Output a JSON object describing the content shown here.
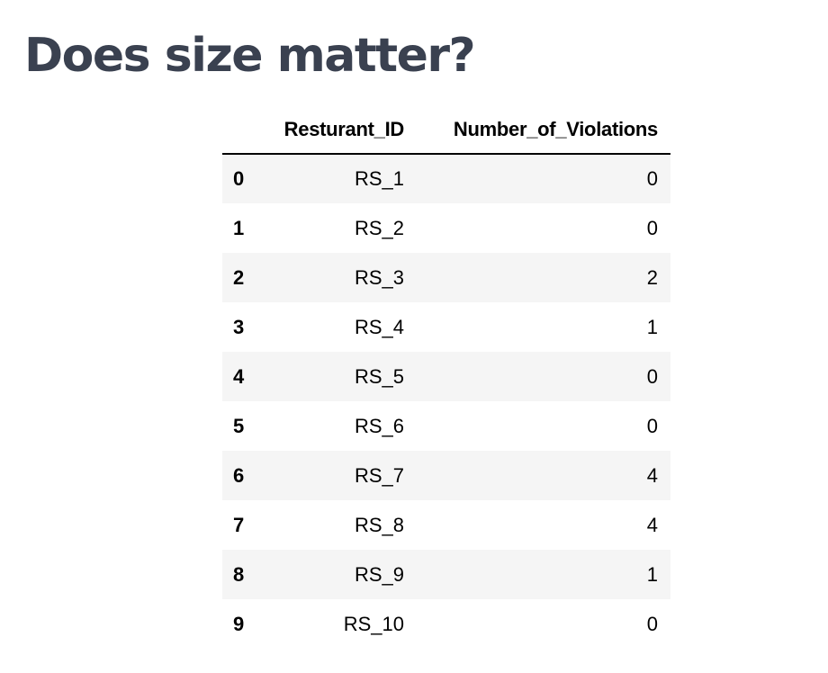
{
  "title": "Does size matter?",
  "table": {
    "index_header": "",
    "columns": [
      "Resturant_ID",
      "Number_of_Violations"
    ],
    "rows": [
      {
        "index": "0",
        "id": "RS_1",
        "violations": "0"
      },
      {
        "index": "1",
        "id": "RS_2",
        "violations": "0"
      },
      {
        "index": "2",
        "id": "RS_3",
        "violations": "2"
      },
      {
        "index": "3",
        "id": "RS_4",
        "violations": "1"
      },
      {
        "index": "4",
        "id": "RS_5",
        "violations": "0"
      },
      {
        "index": "5",
        "id": "RS_6",
        "violations": "0"
      },
      {
        "index": "6",
        "id": "RS_7",
        "violations": "4"
      },
      {
        "index": "7",
        "id": "RS_8",
        "violations": "4"
      },
      {
        "index": "8",
        "id": "RS_9",
        "violations": "1"
      },
      {
        "index": "9",
        "id": "RS_10",
        "violations": "0"
      }
    ]
  }
}
